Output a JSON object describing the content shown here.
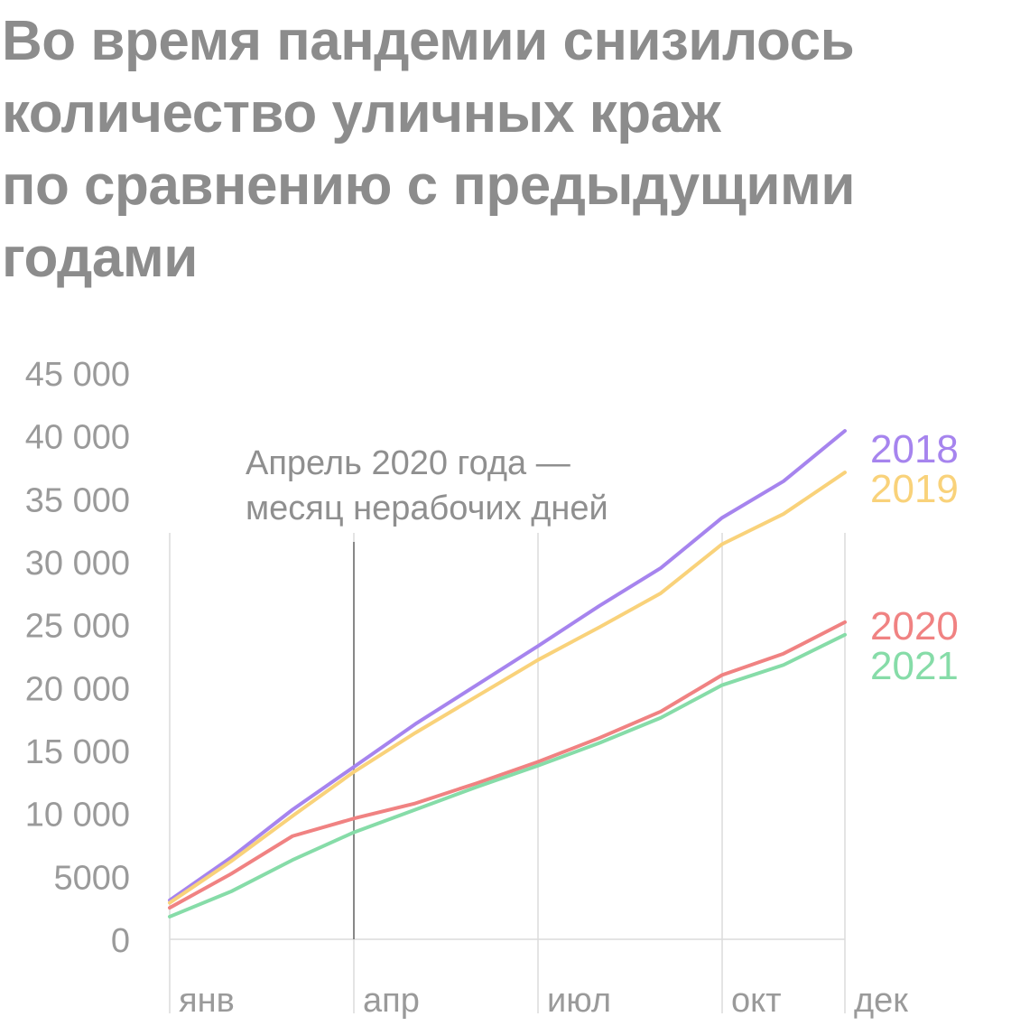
{
  "title_lines": [
    "Во время пандемии снизилось",
    "количество уличных краж",
    "по сравнению с предыдущими",
    "годами"
  ],
  "chart_data": {
    "type": "line",
    "title": "Во время пандемии снизилось количество уличных краж по сравнению с предыдущими годами",
    "x": [
      1,
      2,
      3,
      4,
      5,
      6,
      7,
      8,
      9,
      10,
      11,
      12
    ],
    "x_ticks": [
      {
        "x": 1,
        "label": "янв"
      },
      {
        "x": 4,
        "label": "апр"
      },
      {
        "x": 7,
        "label": "июл"
      },
      {
        "x": 10,
        "label": "окт"
      },
      {
        "x": 12,
        "label": "дек"
      }
    ],
    "y_ticks": [
      {
        "value": 0,
        "label": "0"
      },
      {
        "value": 5000,
        "label": "5000"
      },
      {
        "value": 10000,
        "label": "10 000"
      },
      {
        "value": 15000,
        "label": "15 000"
      },
      {
        "value": 20000,
        "label": "20 000"
      },
      {
        "value": 25000,
        "label": "25 000"
      },
      {
        "value": 30000,
        "label": "30 000"
      },
      {
        "value": 35000,
        "label": "35 000"
      },
      {
        "value": 40000,
        "label": "40 000"
      },
      {
        "value": 45000,
        "label": "45 000"
      }
    ],
    "ylim": [
      0,
      45000
    ],
    "xlim": [
      1,
      12
    ],
    "grid": "vertical at янв, апр, июл, окт, дек",
    "series": [
      {
        "name": "2018",
        "color": "#a684ee",
        "values": [
          3100,
          6500,
          10300,
          13700,
          17100,
          20200,
          23300,
          26500,
          29500,
          33500,
          36400,
          40400
        ]
      },
      {
        "name": "2019",
        "color": "#f9d27a",
        "values": [
          2900,
          6200,
          9800,
          13300,
          16400,
          19300,
          22200,
          24800,
          27500,
          31400,
          33800,
          37100
        ]
      },
      {
        "name": "2020",
        "color": "#f08282",
        "values": [
          2500,
          5200,
          8200,
          9600,
          10800,
          12400,
          14100,
          16000,
          18100,
          21000,
          22700,
          25200
        ]
      },
      {
        "name": "2021",
        "color": "#86dca8",
        "values": [
          1800,
          3800,
          6300,
          8500,
          10300,
          12100,
          13800,
          15600,
          17600,
          20200,
          21800,
          24200
        ]
      }
    ],
    "annotation": {
      "x": 4,
      "lines": [
        "Апрель 2020 года —",
        "месяц нерабочих дней"
      ]
    },
    "legend": "right, at line ends"
  }
}
